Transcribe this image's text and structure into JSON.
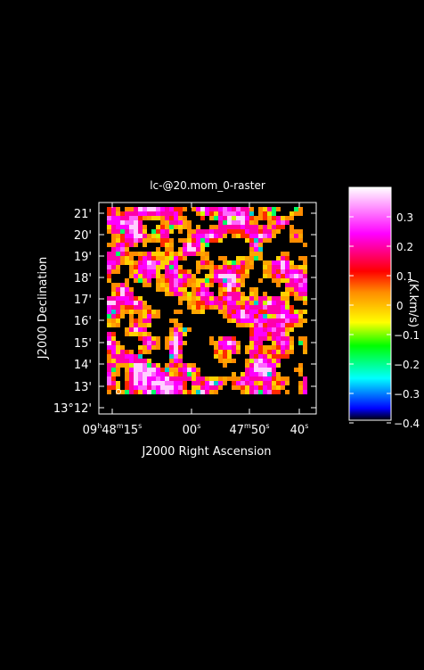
{
  "plot": {
    "title": "lc-@20.mom_0-raster",
    "xlabel": "J2000 Right Ascension",
    "ylabel": "J2000 Declination",
    "x_ticks": [
      {
        "main": "09",
        "sup1": "h",
        "main2": "48",
        "sup2": "m",
        "main3": "15",
        "sup3": "s"
      },
      {
        "main": "00",
        "sup1": "s"
      },
      {
        "main": "47",
        "sup1": "m",
        "main2": "50",
        "sup2": "s"
      },
      {
        "main": "40",
        "sup1": "s"
      }
    ],
    "y_ticks": [
      "13°12'",
      "13'",
      "14'",
      "15'",
      "16'",
      "17'",
      "18'",
      "19'",
      "20'",
      "21'"
    ]
  },
  "colorbar": {
    "label": "(K.km/s)",
    "ticks": [
      "0.3",
      "0.2",
      "0.1",
      "0",
      "−0.1",
      "−0.2",
      "−0.3",
      "−0.4"
    ],
    "range": [
      -0.4,
      0.39
    ],
    "colors": [
      "#0000ff",
      "#00ffff",
      "#00ff00",
      "#ffff00",
      "#ff8c00",
      "#ff0000",
      "#ff00ff",
      "#ffffff"
    ]
  }
}
